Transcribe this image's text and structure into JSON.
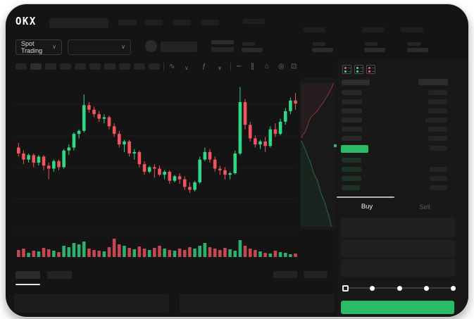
{
  "brand": "OKX",
  "colors": {
    "window_bg": "#141414",
    "panel_bg": "#181818",
    "up_green": "#2fd884",
    "down_red": "#f2545f",
    "accent_green": "#2abb66"
  },
  "trading_header": {
    "market_selector_label": "Spot Trading",
    "market_selector_chevron": "∨",
    "pair_selector_chevron": "∨"
  },
  "chart_toolbar": {
    "icons": [
      {
        "name": "candle-interval-icon",
        "glyph": "∿"
      },
      {
        "name": "chevron-down-icon",
        "glyph": "∨"
      },
      {
        "name": "indicators-icon",
        "glyph": "ƒ"
      },
      {
        "name": "chevron-down-icon",
        "glyph": "∨"
      },
      {
        "name": "line-tool-icon",
        "glyph": "∼"
      },
      {
        "name": "fib-tool-icon",
        "glyph": "∥"
      },
      {
        "name": "screenshot-icon",
        "glyph": "⌂"
      },
      {
        "name": "history-icon",
        "glyph": "◎"
      },
      {
        "name": "fullscreen-icon",
        "glyph": "⊡"
      }
    ]
  },
  "order_book": {
    "view_toggles": [
      {
        "name": "book-both-view-icon",
        "top": "#f2545f",
        "bottom": "#2fd884"
      },
      {
        "name": "book-bids-view-icon",
        "top": "#2fd884",
        "bottom": "#2fd884"
      },
      {
        "name": "book-asks-view-icon",
        "top": "#f2545f",
        "bottom": "#f2545f"
      }
    ],
    "header": {
      "left_w": 40,
      "right_w": 42
    },
    "asks": [
      {
        "l": 29,
        "r": 27
      },
      {
        "l": 29,
        "r": 27
      },
      {
        "l": 29,
        "r": 27
      },
      {
        "l": 29,
        "r": 31
      },
      {
        "l": 29,
        "r": 27
      },
      {
        "l": 29,
        "r": 27
      }
    ],
    "last_price_bar": {
      "w": 39,
      "h": 11,
      "color": "#2abb66",
      "right_w": 25
    },
    "bids": [
      {
        "l": 28,
        "r": 0
      },
      {
        "l": 28,
        "r": 25
      },
      {
        "l": 28,
        "r": 25
      },
      {
        "l": 26,
        "r": 25
      }
    ]
  },
  "trade_panel": {
    "tabs": [
      {
        "label": "Buy",
        "active": true
      },
      {
        "label": "Sell",
        "active": false
      }
    ],
    "fields": 3,
    "slider": {
      "stops": 5,
      "active_stop": 0
    },
    "submit_button_color": "#2abb66"
  },
  "chart_data": {
    "type": "candlestick",
    "note": "No axis labels visible; values normalized 0-100 estimated from pixels",
    "grid": true,
    "candles_ohlc": [
      [
        57,
        60,
        51,
        53
      ],
      [
        53,
        55,
        46,
        49
      ],
      [
        49,
        53,
        47,
        52
      ],
      [
        52,
        53,
        44,
        47
      ],
      [
        47,
        52,
        45,
        51
      ],
      [
        51,
        52,
        42,
        45
      ],
      [
        45,
        47,
        36,
        43
      ],
      [
        43,
        49,
        41,
        48
      ],
      [
        48,
        49,
        42,
        44
      ],
      [
        44,
        56,
        43,
        55
      ],
      [
        55,
        59,
        52,
        57
      ],
      [
        57,
        67,
        55,
        66
      ],
      [
        66,
        69,
        63,
        68
      ],
      [
        68,
        92,
        67,
        85
      ],
      [
        85,
        87,
        80,
        82
      ],
      [
        82,
        84,
        77,
        79
      ],
      [
        79,
        81,
        74,
        76
      ],
      [
        76,
        79,
        73,
        77
      ],
      [
        77,
        78,
        69,
        71
      ],
      [
        71,
        73,
        64,
        66
      ],
      [
        66,
        68,
        57,
        59
      ],
      [
        59,
        62,
        54,
        61
      ],
      [
        61,
        62,
        51,
        53
      ],
      [
        53,
        56,
        49,
        54
      ],
      [
        54,
        55,
        44,
        46
      ],
      [
        46,
        48,
        39,
        41
      ],
      [
        41,
        45,
        40,
        44
      ],
      [
        44,
        46,
        37,
        43
      ],
      [
        43,
        45,
        38,
        39
      ],
      [
        39,
        42,
        36,
        41
      ],
      [
        41,
        42,
        33,
        35
      ],
      [
        35,
        39,
        34,
        38
      ],
      [
        38,
        40,
        33,
        36
      ],
      [
        36,
        38,
        29,
        31
      ],
      [
        31,
        34,
        27,
        29
      ],
      [
        29,
        35,
        28,
        34
      ],
      [
        34,
        51,
        33,
        49
      ],
      [
        49,
        57,
        48,
        54
      ],
      [
        54,
        56,
        47,
        49
      ],
      [
        49,
        51,
        41,
        43
      ],
      [
        43,
        45,
        39,
        42
      ],
      [
        42,
        44,
        36,
        39
      ],
      [
        39,
        41,
        36,
        40
      ],
      [
        40,
        55,
        39,
        53
      ],
      [
        53,
        97,
        52,
        87
      ],
      [
        87,
        89,
        69,
        72
      ],
      [
        72,
        74,
        61,
        63
      ],
      [
        63,
        65,
        57,
        59
      ],
      [
        59,
        62,
        56,
        61
      ],
      [
        61,
        64,
        54,
        58
      ],
      [
        58,
        71,
        57,
        69
      ],
      [
        69,
        73,
        64,
        66
      ],
      [
        66,
        76,
        65,
        74
      ],
      [
        74,
        83,
        72,
        81
      ],
      [
        81,
        90,
        79,
        88
      ],
      [
        88,
        93,
        82,
        86
      ]
    ],
    "volumes": [
      10,
      12,
      6,
      9,
      8,
      13,
      11,
      9,
      7,
      16,
      14,
      20,
      18,
      22,
      12,
      10,
      9,
      8,
      14,
      26,
      18,
      16,
      13,
      11,
      15,
      12,
      10,
      13,
      16,
      12,
      10,
      9,
      12,
      10,
      14,
      12,
      16,
      20,
      14,
      12,
      10,
      13,
      11,
      9,
      24,
      16,
      12,
      10,
      8,
      6,
      5,
      9,
      7,
      6,
      4,
      5
    ],
    "depth": {
      "asks": [
        [
          0.02,
          0
        ],
        [
          0.06,
          0.06
        ],
        [
          0.12,
          0.1
        ],
        [
          0.16,
          0.16
        ],
        [
          0.2,
          0.22
        ],
        [
          0.24,
          0.3
        ],
        [
          0.3,
          0.38
        ],
        [
          0.42,
          0.45
        ],
        [
          0.5,
          0.5
        ],
        [
          0.58,
          0.58
        ],
        [
          0.66,
          0.64
        ],
        [
          0.72,
          0.7
        ],
        [
          0.8,
          0.78
        ],
        [
          0.86,
          0.85
        ],
        [
          0.92,
          0.92
        ],
        [
          0.97,
          1
        ]
      ],
      "bids": [
        [
          0.02,
          0
        ],
        [
          0.08,
          0.05
        ],
        [
          0.14,
          0.1
        ],
        [
          0.22,
          0.18
        ],
        [
          0.3,
          0.25
        ],
        [
          0.34,
          0.3
        ],
        [
          0.4,
          0.38
        ],
        [
          0.5,
          0.45
        ],
        [
          0.56,
          0.52
        ],
        [
          0.62,
          0.6
        ],
        [
          0.7,
          0.68
        ],
        [
          0.78,
          0.76
        ],
        [
          0.84,
          0.84
        ],
        [
          0.9,
          0.92
        ],
        [
          0.95,
          1
        ]
      ]
    }
  }
}
